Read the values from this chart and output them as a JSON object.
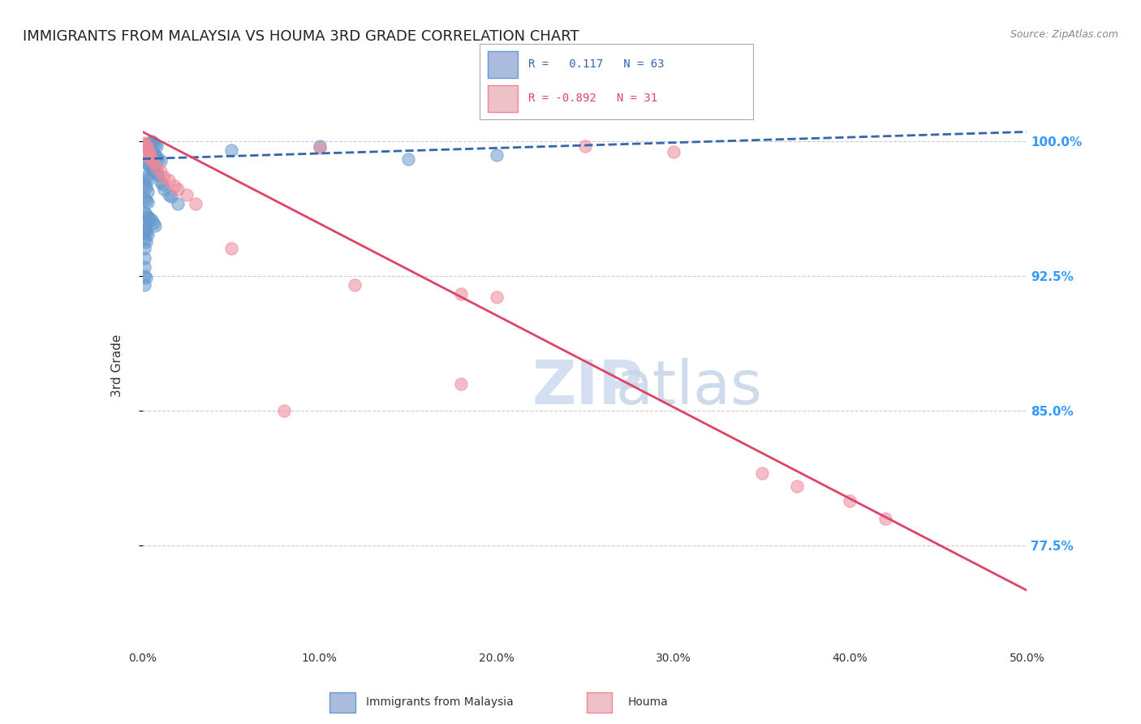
{
  "title": "IMMIGRANTS FROM MALAYSIA VS HOUMA 3RD GRADE CORRELATION CHART",
  "source": "Source: ZipAtlas.com",
  "ylabel": "3rd Grade",
  "ytick_labels": [
    "100.0%",
    "92.5%",
    "85.0%",
    "77.5%"
  ],
  "ytick_values": [
    1.0,
    0.925,
    0.85,
    0.775
  ],
  "xlim": [
    0.0,
    0.5
  ],
  "ylim": [
    0.72,
    1.03
  ],
  "blue_scatter": [
    [
      0.002,
      0.997
    ],
    [
      0.003,
      0.998
    ],
    [
      0.004,
      0.999
    ],
    [
      0.005,
      1.0
    ],
    [
      0.006,
      0.999
    ],
    [
      0.007,
      0.998
    ],
    [
      0.008,
      0.997
    ],
    [
      0.003,
      0.996
    ],
    [
      0.004,
      0.995
    ],
    [
      0.005,
      0.994
    ],
    [
      0.006,
      0.993
    ],
    [
      0.007,
      0.992
    ],
    [
      0.008,
      0.991
    ],
    [
      0.009,
      0.99
    ],
    [
      0.01,
      0.989
    ],
    [
      0.002,
      0.988
    ],
    [
      0.003,
      0.987
    ],
    [
      0.004,
      0.986
    ],
    [
      0.005,
      0.985
    ],
    [
      0.006,
      0.984
    ],
    [
      0.007,
      0.983
    ],
    [
      0.008,
      0.982
    ],
    [
      0.009,
      0.981
    ],
    [
      0.001,
      0.98
    ],
    [
      0.002,
      0.979
    ],
    [
      0.003,
      0.978
    ],
    [
      0.01,
      0.977
    ],
    [
      0.011,
      0.976
    ],
    [
      0.001,
      0.975
    ],
    [
      0.002,
      0.974
    ],
    [
      0.012,
      0.973
    ],
    [
      0.003,
      0.972
    ],
    [
      0.015,
      0.97
    ],
    [
      0.016,
      0.969
    ],
    [
      0.001,
      0.968
    ],
    [
      0.002,
      0.967
    ],
    [
      0.003,
      0.966
    ],
    [
      0.02,
      0.965
    ],
    [
      0.001,
      0.96
    ],
    [
      0.002,
      0.959
    ],
    [
      0.003,
      0.958
    ],
    [
      0.004,
      0.957
    ],
    [
      0.005,
      0.956
    ],
    [
      0.001,
      0.955
    ],
    [
      0.006,
      0.954
    ],
    [
      0.007,
      0.953
    ],
    [
      0.001,
      0.952
    ],
    [
      0.002,
      0.951
    ],
    [
      0.001,
      0.95
    ],
    [
      0.002,
      0.949
    ],
    [
      0.003,
      0.948
    ],
    [
      0.001,
      0.945
    ],
    [
      0.002,
      0.944
    ],
    [
      0.05,
      0.995
    ],
    [
      0.1,
      0.997
    ],
    [
      0.15,
      0.99
    ],
    [
      0.2,
      0.992
    ],
    [
      0.001,
      0.94
    ],
    [
      0.001,
      0.935
    ],
    [
      0.001,
      0.93
    ],
    [
      0.001,
      0.925
    ],
    [
      0.002,
      0.924
    ],
    [
      0.001,
      0.92
    ]
  ],
  "pink_scatter": [
    [
      0.001,
      0.998
    ],
    [
      0.002,
      0.995
    ],
    [
      0.003,
      0.993
    ],
    [
      0.004,
      0.991
    ],
    [
      0.005,
      0.99
    ],
    [
      0.006,
      0.988
    ],
    [
      0.008,
      0.985
    ],
    [
      0.01,
      0.983
    ],
    [
      0.012,
      0.98
    ],
    [
      0.015,
      0.978
    ],
    [
      0.018,
      0.975
    ],
    [
      0.02,
      0.973
    ],
    [
      0.025,
      0.97
    ],
    [
      0.03,
      0.965
    ],
    [
      0.1,
      0.996
    ],
    [
      0.25,
      0.997
    ],
    [
      0.3,
      0.994
    ],
    [
      0.05,
      0.94
    ],
    [
      0.12,
      0.92
    ],
    [
      0.18,
      0.915
    ],
    [
      0.2,
      0.913
    ],
    [
      0.08,
      0.85
    ],
    [
      0.35,
      0.815
    ],
    [
      0.4,
      0.8
    ],
    [
      0.002,
      0.997
    ],
    [
      0.003,
      0.996
    ],
    [
      0.004,
      0.994
    ],
    [
      0.001,
      0.999
    ],
    [
      0.37,
      0.808
    ],
    [
      0.42,
      0.79
    ],
    [
      0.18,
      0.865
    ]
  ],
  "blue_line_x": [
    0.0,
    0.5
  ],
  "blue_line_y": [
    0.99,
    1.005
  ],
  "pink_line_x": [
    0.0,
    0.5
  ],
  "pink_line_y": [
    1.005,
    0.75
  ],
  "background_color": "#ffffff",
  "grid_color": "#cccccc",
  "scatter_blue_color": "#6699cc",
  "scatter_pink_color": "#ee8899",
  "line_blue_color": "#3366aa",
  "line_pink_color": "#dd4466",
  "watermark_zip_color": "#d0ddf0",
  "watermark_atlas_color": "#c8d8e8",
  "legend_blue_fill": "#aabbdd",
  "legend_blue_edge": "#6699cc",
  "legend_pink_fill": "#eec0c8",
  "legend_pink_edge": "#ee8899",
  "legend_blue_text": "R =   0.117   N = 63",
  "legend_pink_text": "R = -0.892   N = 31",
  "legend_text_blue_color": "#3366aa",
  "legend_text_pink_color": "#dd4466",
  "right_axis_color": "#3399ff",
  "bottom_label_blue": "Immigrants from Malaysia",
  "bottom_label_pink": "Houma"
}
